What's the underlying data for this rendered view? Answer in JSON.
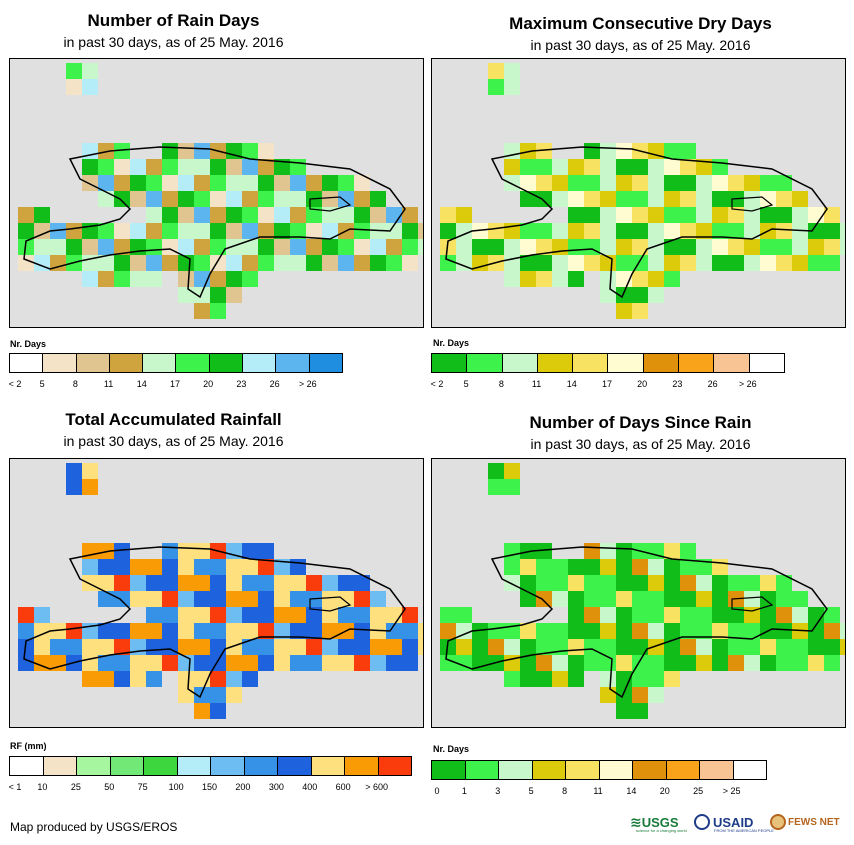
{
  "panels": [
    {
      "id": "rain-days",
      "title": "Number of Rain Days",
      "subtitle": "in past 30 days, as of 25 May. 2016",
      "legend_title": "Nr. Days",
      "legend_colors": [
        "#ffffff",
        "#f4e3c6",
        "#e0c591",
        "#cfa33e",
        "#c8f7cc",
        "#3ef24c",
        "#10bd19",
        "#b4ecf7",
        "#5cb5ee",
        "#1f8ee0"
      ],
      "legend_labels": [
        "< 2",
        "5",
        "8",
        "11",
        "14",
        "17",
        "20",
        "23",
        "26",
        "> 26"
      ]
    },
    {
      "id": "max-dry",
      "title": "Maximum Consecutive Dry Days",
      "subtitle": "in past 30 days, as of 25 May. 2016",
      "legend_title": "Nr. Days",
      "legend_colors": [
        "#10bd19",
        "#3ef24c",
        "#c8f7cc",
        "#dccb0a",
        "#f8e262",
        "#fffcd1",
        "#e0910c",
        "#f9a31b",
        "#f8c493",
        "#ffffff"
      ],
      "legend_labels": [
        "< 2",
        "5",
        "8",
        "11",
        "14",
        "17",
        "20",
        "23",
        "26",
        "> 26"
      ]
    },
    {
      "id": "total-rf",
      "title": "Total Accumulated Rainfall",
      "subtitle": "in past 30 days, as of 25 May. 2016",
      "legend_title": "RF (mm)",
      "legend_colors": [
        "#ffffff",
        "#f4e3c6",
        "#a6f59f",
        "#72e877",
        "#3dd63f",
        "#b4ecf7",
        "#6dbdf3",
        "#3592e7",
        "#1f62de",
        "#fee07f",
        "#f99b05",
        "#fa3b0c"
      ],
      "legend_labels": [
        "< 1",
        "10",
        "25",
        "50",
        "75",
        "100",
        "150",
        "200",
        "300",
        "400",
        "600",
        "> 600"
      ]
    },
    {
      "id": "days-since",
      "title": "Number of Days Since Rain",
      "subtitle": "in past 30 days, as of 25 May. 2016",
      "legend_title": "Nr. Days",
      "legend_colors": [
        "#10bd19",
        "#3ef24c",
        "#c8f7cc",
        "#dccb0a",
        "#f8e262",
        "#fffcd1",
        "#e0910c",
        "#f9a31b",
        "#f8c493",
        "#ffffff"
      ],
      "legend_labels": [
        "0",
        "1",
        "3",
        "5",
        "8",
        "11",
        "14",
        "20",
        "25",
        "> 25"
      ]
    }
  ],
  "footer": {
    "credit": "Map produced by USGS/EROS",
    "logos": {
      "usgs": "USGS",
      "usgs_tagline": "science for a changing world",
      "usaid": "USAID",
      "usaid_tagline": "FROM THE AMERICAN PEOPLE",
      "fewsnet": "FEWS NET"
    }
  }
}
